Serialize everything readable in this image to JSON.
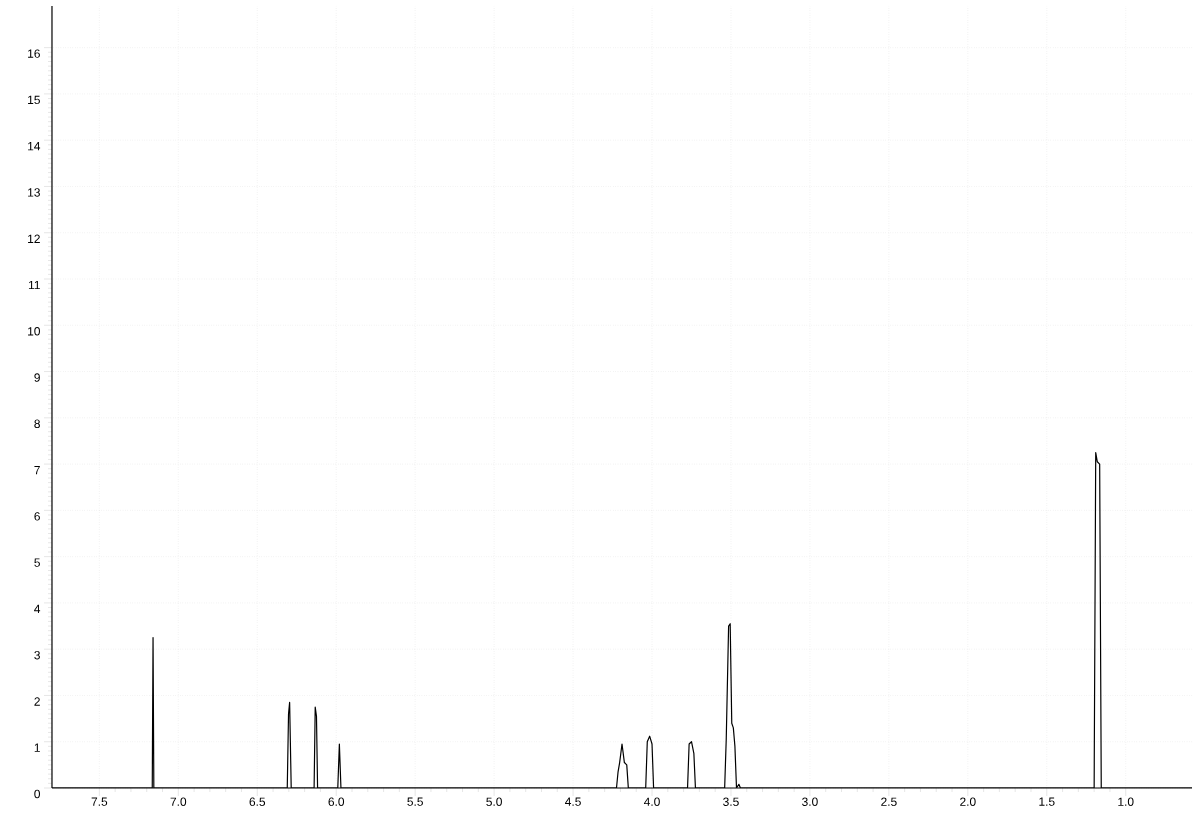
{
  "chart_data": {
    "type": "line",
    "color": "#000000",
    "grid": true,
    "line_style": "solid",
    "x": [
      7.8,
      7.165,
      7.16,
      7.155,
      6.31,
      6.302,
      6.295,
      6.285,
      6.14,
      6.133,
      6.125,
      6.118,
      5.99,
      5.98,
      5.97,
      4.225,
      4.215,
      4.205,
      4.19,
      4.175,
      4.16,
      4.15,
      4.04,
      4.03,
      4.015,
      4.0,
      3.99,
      3.775,
      3.765,
      3.75,
      3.735,
      3.725,
      3.54,
      3.53,
      3.515,
      3.505,
      3.495,
      3.485,
      3.475,
      3.465,
      3.45,
      3.44,
      1.2,
      1.19,
      1.18,
      1.165,
      1.155,
      0.58
    ],
    "values": [
      0,
      0,
      3.25,
      0,
      0,
      1.6,
      1.85,
      0,
      0,
      1.75,
      1.55,
      0,
      0,
      0.95,
      0,
      0,
      0.35,
      0.55,
      0.95,
      0.55,
      0.5,
      0,
      0,
      1.0,
      1.12,
      0.95,
      0,
      0,
      0.95,
      1.0,
      0.75,
      0,
      0,
      1.05,
      3.5,
      3.55,
      1.4,
      1.3,
      0.9,
      0,
      0.08,
      0,
      0,
      7.25,
      7.05,
      7.0,
      0,
      0
    ],
    "xlim": [
      7.8,
      0.58
    ],
    "xticks": [
      7.5,
      {
        "value": 7.0,
        "label": "7.0"
      },
      6.5,
      {
        "value": 6.0,
        "label": "6.0"
      },
      5.5,
      {
        "value": 5.0,
        "label": "5.0"
      },
      4.5,
      {
        "value": 4.0,
        "label": "4.0"
      },
      3.5,
      {
        "value": 3.0,
        "label": "3.0"
      },
      2.5,
      {
        "value": 2.0,
        "label": "2.0"
      },
      1.5,
      {
        "value": 1.0,
        "label": "1.0"
      }
    ],
    "ylim": [
      0,
      16.9
    ],
    "yticks": [
      0,
      1,
      2,
      3,
      4,
      5,
      6,
      7,
      8,
      9,
      10,
      11,
      12,
      13,
      14,
      15,
      16
    ]
  }
}
